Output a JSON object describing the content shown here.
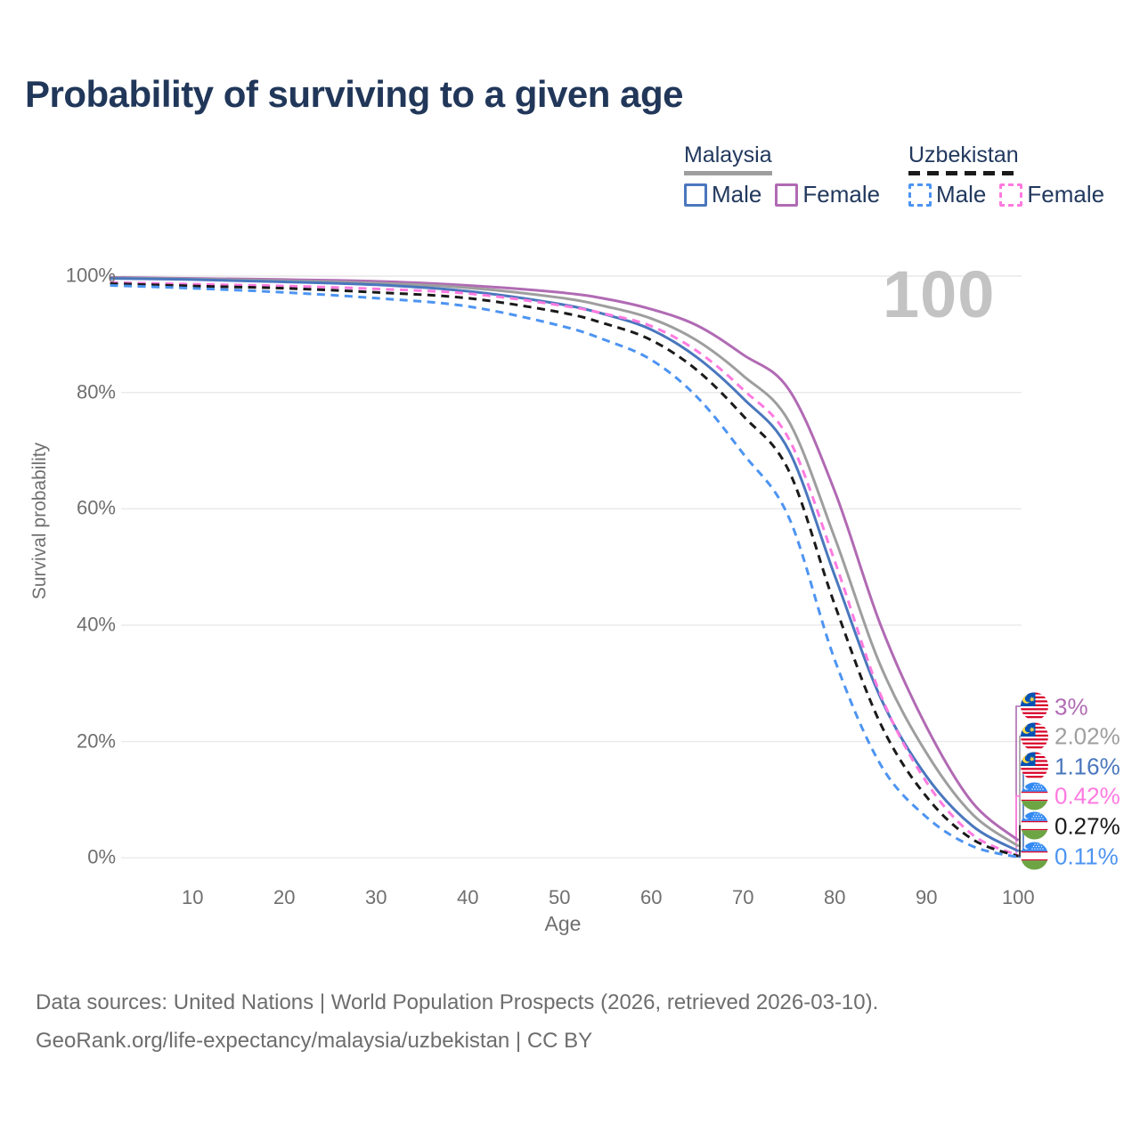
{
  "title": "Probability of surviving to a given age",
  "watermark": "100",
  "legend": {
    "groups": [
      {
        "country": "Malaysia",
        "line_style": "solid",
        "line_color": "#9e9e9e",
        "items": [
          {
            "label": "Male",
            "color": "#4a77bd",
            "dashed": false
          },
          {
            "label": "Female",
            "color": "#b16ab4",
            "dashed": false
          }
        ]
      },
      {
        "country": "Uzbekistan",
        "line_style": "dashed",
        "line_color": "#1a1a1a",
        "items": [
          {
            "label": "Male",
            "color": "#4d94f2",
            "dashed": true
          },
          {
            "label": "Female",
            "color": "#ff7ae0",
            "dashed": true
          }
        ]
      }
    ]
  },
  "chart_data": {
    "type": "line",
    "title": "Probability of surviving to a given age",
    "xlabel": "Age",
    "ylabel": "Survival probability",
    "xlim": [
      1,
      100
    ],
    "ylim": [
      0,
      100
    ],
    "x_ticks": [
      "10",
      "20",
      "30",
      "40",
      "50",
      "60",
      "70",
      "80",
      "90",
      "100"
    ],
    "y_ticks": [
      "0%",
      "20%",
      "40%",
      "60%",
      "80%",
      "100%"
    ],
    "grid": "horizontal",
    "legend_position": "top-right",
    "series": [
      {
        "name": "Malaysia Female",
        "country": "Malaysia",
        "sex": "Female",
        "color": "#b16ab4",
        "dashed": false,
        "end_label": "3%",
        "end_value": 3,
        "points": [
          [
            1,
            99.8
          ],
          [
            10,
            99.6
          ],
          [
            20,
            99.4
          ],
          [
            30,
            99.1
          ],
          [
            40,
            98.4
          ],
          [
            50,
            97.2
          ],
          [
            55,
            96.1
          ],
          [
            60,
            94.3
          ],
          [
            65,
            91.5
          ],
          [
            70,
            86.5
          ],
          [
            75,
            80.5
          ],
          [
            80,
            63
          ],
          [
            85,
            40
          ],
          [
            90,
            22.5
          ],
          [
            95,
            9.5
          ],
          [
            100,
            3
          ]
        ]
      },
      {
        "name": "Malaysia Both sexes",
        "country": "Malaysia",
        "sex": "Both",
        "color": "#9e9e9e",
        "dashed": false,
        "end_label": "2.02%",
        "end_value": 2.02,
        "points": [
          [
            1,
            99.7
          ],
          [
            10,
            99.5
          ],
          [
            20,
            99.2
          ],
          [
            30,
            98.8
          ],
          [
            40,
            98.0
          ],
          [
            50,
            96.3
          ],
          [
            55,
            94.8
          ],
          [
            60,
            92.7
          ],
          [
            65,
            88.9
          ],
          [
            70,
            82.9
          ],
          [
            75,
            75.0
          ],
          [
            80,
            55
          ],
          [
            85,
            33
          ],
          [
            90,
            18
          ],
          [
            95,
            7.5
          ],
          [
            100,
            2.02
          ]
        ]
      },
      {
        "name": "Malaysia Male",
        "country": "Malaysia",
        "sex": "Male",
        "color": "#4a77bd",
        "dashed": false,
        "end_label": "1.16%",
        "end_value": 1.16,
        "points": [
          [
            1,
            99.6
          ],
          [
            10,
            99.4
          ],
          [
            20,
            99.0
          ],
          [
            30,
            98.5
          ],
          [
            40,
            97.4
          ],
          [
            50,
            95.2
          ],
          [
            55,
            93.4
          ],
          [
            60,
            90.8
          ],
          [
            65,
            86.0
          ],
          [
            70,
            79.0
          ],
          [
            75,
            70.0
          ],
          [
            80,
            48.5
          ],
          [
            85,
            27.5
          ],
          [
            90,
            14
          ],
          [
            95,
            5.5
          ],
          [
            100,
            1.16
          ]
        ]
      },
      {
        "name": "Uzbekistan Female",
        "country": "Uzbekistan",
        "sex": "Female",
        "color": "#ff7ae0",
        "dashed": true,
        "end_label": "0.42%",
        "end_value": 0.42,
        "points": [
          [
            1,
            98.9
          ],
          [
            10,
            98.6
          ],
          [
            20,
            98.3
          ],
          [
            30,
            97.8
          ],
          [
            40,
            97.0
          ],
          [
            50,
            95.0
          ],
          [
            55,
            93.5
          ],
          [
            60,
            91.4
          ],
          [
            65,
            87.1
          ],
          [
            70,
            80.5
          ],
          [
            75,
            72.0
          ],
          [
            80,
            51
          ],
          [
            85,
            28
          ],
          [
            90,
            13
          ],
          [
            95,
            4
          ],
          [
            100,
            0.42
          ]
        ]
      },
      {
        "name": "Uzbekistan Both sexes",
        "country": "Uzbekistan",
        "sex": "Both",
        "color": "#1a1a1a",
        "dashed": true,
        "end_label": "0.27%",
        "end_value": 0.27,
        "points": [
          [
            1,
            98.7
          ],
          [
            10,
            98.3
          ],
          [
            20,
            97.9
          ],
          [
            30,
            97.2
          ],
          [
            40,
            96.2
          ],
          [
            50,
            93.8
          ],
          [
            55,
            91.8
          ],
          [
            60,
            89.0
          ],
          [
            65,
            83.8
          ],
          [
            70,
            76.0
          ],
          [
            75,
            66.5
          ],
          [
            80,
            43.5
          ],
          [
            85,
            23
          ],
          [
            90,
            10.5
          ],
          [
            95,
            3.2
          ],
          [
            100,
            0.27
          ]
        ]
      },
      {
        "name": "Uzbekistan Male",
        "country": "Uzbekistan",
        "sex": "Male",
        "color": "#4d94f2",
        "dashed": true,
        "end_label": "0.11%",
        "end_value": 0.11,
        "points": [
          [
            1,
            98.4
          ],
          [
            10,
            97.9
          ],
          [
            20,
            97.2
          ],
          [
            30,
            96.2
          ],
          [
            40,
            94.8
          ],
          [
            50,
            91.5
          ],
          [
            55,
            89.0
          ],
          [
            60,
            85.6
          ],
          [
            65,
            79.2
          ],
          [
            70,
            69.5
          ],
          [
            75,
            58.5
          ],
          [
            80,
            34
          ],
          [
            85,
            16
          ],
          [
            90,
            7
          ],
          [
            95,
            2
          ],
          [
            100,
            0.11
          ]
        ]
      }
    ]
  },
  "footer": {
    "line1": "Data sources: United Nations | World Population Prospects (2026, retrieved 2026-03-10).",
    "line2": "GeoRank.org/life-expectancy/malaysia/uzbekistan | CC BY"
  }
}
